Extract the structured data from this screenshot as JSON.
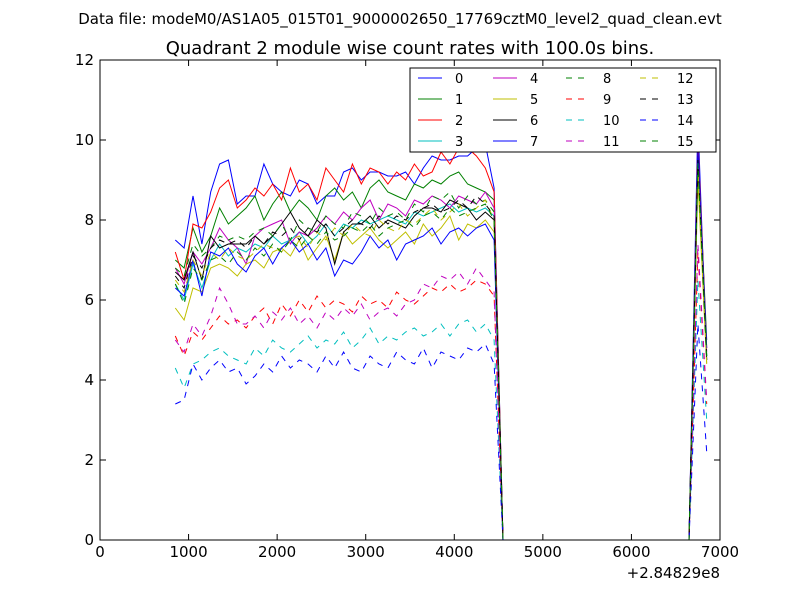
{
  "chart_data": {
    "type": "line",
    "suptitle": "Data file: modeM0/AS1A05_015T01_9000002650_17769cztM0_level2_quad_clean.evt",
    "title": "Quadrant 2 module wise count rates with 100.0s bins.",
    "xlabel": "",
    "ylabel": "",
    "x_offset_label": "+2.84829e8",
    "xlim": [
      0,
      7000
    ],
    "ylim": [
      0,
      12
    ],
    "xticks": [
      0,
      1000,
      2000,
      3000,
      4000,
      5000,
      6000,
      7000
    ],
    "yticks": [
      0,
      2,
      4,
      6,
      8,
      10,
      12
    ],
    "legend_position": "top-right",
    "x": [
      850,
      950,
      1050,
      1150,
      1250,
      1350,
      1450,
      1550,
      1650,
      1750,
      1850,
      1950,
      2050,
      2150,
      2250,
      2350,
      2450,
      2550,
      2650,
      2750,
      2850,
      2950,
      3050,
      3150,
      3250,
      3350,
      3450,
      3550,
      3650,
      3750,
      3850,
      3950,
      4050,
      4150,
      4250,
      4350,
      4450,
      4550,
      4650,
      4750,
      4850,
      4950,
      5050,
      5150,
      5250,
      5350,
      5450,
      5550,
      5650,
      5750,
      5850,
      5950,
      6050,
      6150,
      6250,
      6350,
      6450,
      6550,
      6650,
      6750,
      6850
    ],
    "series": [
      {
        "name": "0",
        "color": "#0000ff",
        "dash": "solid",
        "values": [
          7.5,
          7.3,
          8.6,
          7.4,
          8.7,
          9.4,
          9.5,
          8.4,
          8.6,
          8.6,
          9.4,
          8.9,
          8.7,
          8.6,
          9.0,
          8.9,
          8.4,
          8.6,
          8.6,
          9.2,
          9.3,
          9.0,
          9.2,
          9.2,
          9.1,
          9.1,
          9.2,
          8.9,
          9.3,
          9.6,
          9.5,
          9.5,
          9.6,
          9.6,
          9.8,
          9.9,
          8.8,
          0,
          0,
          0,
          0,
          0,
          0,
          0,
          0,
          0,
          0,
          0,
          0,
          0,
          0,
          0,
          0,
          0,
          0,
          0,
          0,
          0,
          0,
          10.5,
          4.5
        ]
      },
      {
        "name": "1",
        "color": "#008000",
        "dash": "solid",
        "values": [
          7.0,
          6.8,
          7.8,
          7.2,
          7.6,
          8.3,
          7.9,
          8.1,
          8.3,
          8.6,
          8.0,
          8.4,
          8.7,
          8.2,
          8.5,
          8.3,
          8.0,
          8.6,
          8.8,
          8.5,
          8.7,
          8.3,
          8.8,
          9.0,
          8.7,
          8.6,
          8.5,
          8.9,
          8.8,
          9.0,
          8.9,
          9.1,
          9.2,
          8.9,
          8.8,
          8.7,
          8.5,
          0,
          0,
          0,
          0,
          0,
          0,
          0,
          0,
          0,
          0,
          0,
          0,
          0,
          0,
          0,
          0,
          0,
          0,
          0,
          0,
          0,
          0,
          9.8,
          5.0
        ]
      },
      {
        "name": "2",
        "color": "#ff0000",
        "dash": "solid",
        "values": [
          7.2,
          6.5,
          7.9,
          7.8,
          8.2,
          8.8,
          9.0,
          8.3,
          8.5,
          8.8,
          8.6,
          8.9,
          8.5,
          9.3,
          8.7,
          8.9,
          8.5,
          9.3,
          9.0,
          8.7,
          9.4,
          8.9,
          9.3,
          9.2,
          8.9,
          9.2,
          9.0,
          9.4,
          9.1,
          9.2,
          9.7,
          9.4,
          9.8,
          9.8,
          9.6,
          9.3,
          8.7,
          0,
          0,
          0,
          0,
          0,
          0,
          0,
          0,
          0,
          0,
          0,
          0,
          0,
          0,
          0,
          0,
          0,
          0,
          0,
          0,
          0,
          0,
          10.0,
          4.8
        ]
      },
      {
        "name": "3",
        "color": "#00bfbf",
        "dash": "solid",
        "values": [
          6.4,
          6.0,
          6.9,
          6.3,
          7.0,
          7.4,
          7.1,
          7.3,
          7.2,
          7.4,
          7.3,
          7.6,
          7.4,
          7.5,
          7.7,
          7.4,
          7.6,
          7.9,
          7.6,
          7.9,
          7.8,
          8.0,
          7.9,
          8.0,
          8.1,
          8.0,
          7.9,
          8.2,
          8.1,
          8.2,
          8.3,
          8.4,
          8.2,
          8.3,
          8.2,
          8.3,
          8.1,
          0,
          0,
          0,
          0,
          0,
          0,
          0,
          0,
          0,
          0,
          0,
          0,
          0,
          0,
          0,
          0,
          0,
          0,
          0,
          0,
          0,
          0,
          9.2,
          4.6
        ]
      },
      {
        "name": "4",
        "color": "#bf00bf",
        "dash": "solid",
        "values": [
          6.8,
          6.4,
          7.2,
          6.9,
          7.3,
          7.8,
          7.5,
          7.3,
          6.9,
          7.6,
          7.8,
          7.9,
          8.0,
          7.4,
          7.7,
          7.6,
          7.8,
          8.1,
          7.9,
          8.2,
          8.0,
          8.3,
          8.5,
          8.0,
          8.4,
          8.3,
          8.1,
          8.5,
          8.4,
          8.6,
          8.5,
          8.3,
          8.6,
          8.5,
          8.4,
          8.7,
          8.3,
          0,
          0,
          0,
          0,
          0,
          0,
          0,
          0,
          0,
          0,
          0,
          0,
          0,
          0,
          0,
          0,
          0,
          0,
          0,
          0,
          0,
          0,
          9.4,
          4.7
        ]
      },
      {
        "name": "5",
        "color": "#bfbf00",
        "dash": "solid",
        "values": [
          5.8,
          5.5,
          6.3,
          6.2,
          6.8,
          6.9,
          6.8,
          6.6,
          6.9,
          7.0,
          6.8,
          7.2,
          7.3,
          7.1,
          7.5,
          7.0,
          7.3,
          7.6,
          7.0,
          7.7,
          7.4,
          7.6,
          7.8,
          7.5,
          7.3,
          7.5,
          7.7,
          7.4,
          7.9,
          7.6,
          7.8,
          8.1,
          7.5,
          7.9,
          7.8,
          8.0,
          7.7,
          0,
          0,
          0,
          0,
          0,
          0,
          0,
          0,
          0,
          0,
          0,
          0,
          0,
          0,
          0,
          0,
          0,
          0,
          0,
          0,
          0,
          0,
          9.0,
          4.4
        ]
      },
      {
        "name": "6",
        "color": "#000000",
        "dash": "solid",
        "values": [
          6.7,
          6.5,
          7.2,
          6.5,
          7.6,
          7.3,
          7.4,
          7.4,
          7.4,
          7.6,
          7.4,
          7.6,
          7.9,
          8.2,
          7.8,
          7.6,
          8.0,
          7.8,
          6.9,
          7.7,
          7.9,
          7.9,
          8.1,
          7.8,
          8.0,
          7.9,
          7.8,
          8.1,
          8.3,
          8.3,
          8.2,
          8.5,
          8.4,
          8.3,
          8.0,
          8.2,
          8.0,
          0,
          0,
          0,
          0,
          0,
          0,
          0,
          0,
          0,
          0,
          0,
          0,
          0,
          0,
          0,
          0,
          0,
          0,
          0,
          0,
          0,
          0,
          9.6,
          4.5
        ]
      },
      {
        "name": "7",
        "color": "#0000ff",
        "dash": "solid",
        "values": [
          6.3,
          6.1,
          7.0,
          6.1,
          7.2,
          7.1,
          7.3,
          6.9,
          6.7,
          7.1,
          7.3,
          6.9,
          7.3,
          7.5,
          7.2,
          7.4,
          7.0,
          7.3,
          6.6,
          7.0,
          6.9,
          7.2,
          7.6,
          7.3,
          7.5,
          7.0,
          7.4,
          7.5,
          7.6,
          7.8,
          7.4,
          7.7,
          7.8,
          7.6,
          7.8,
          7.9,
          7.5,
          0,
          0,
          0,
          0,
          0,
          0,
          0,
          0,
          0,
          0,
          0,
          0,
          0,
          0,
          0,
          0,
          0,
          0,
          0,
          0,
          0,
          0,
          9.8,
          4.8
        ]
      },
      {
        "name": "8",
        "color": "#008000",
        "dash": "dashed",
        "values": [
          6.8,
          6.6,
          7.4,
          7.1,
          7.3,
          7.6,
          7.5,
          7.6,
          7.5,
          7.7,
          7.8,
          7.6,
          7.9,
          7.5,
          8.0,
          7.8,
          7.7,
          8.1,
          7.9,
          7.8,
          8.2,
          8.1,
          7.9,
          8.3,
          8.1,
          8.2,
          8.0,
          8.4,
          8.2,
          8.6,
          8.5,
          8.7,
          8.3,
          8.6,
          8.4,
          8.5,
          8.2,
          0,
          0,
          0,
          0,
          0,
          0,
          0,
          0,
          0,
          0,
          0,
          0,
          0,
          0,
          0,
          0,
          0,
          0,
          0,
          0,
          0,
          0,
          9.5,
          4.6
        ]
      },
      {
        "name": "9",
        "color": "#ff0000",
        "dash": "dashed",
        "values": [
          5.1,
          4.6,
          5.2,
          5.0,
          5.3,
          5.6,
          5.4,
          5.5,
          5.3,
          5.6,
          5.8,
          5.4,
          5.9,
          5.6,
          6.0,
          5.7,
          6.1,
          5.8,
          6.0,
          5.9,
          5.7,
          6.1,
          5.9,
          6.0,
          5.8,
          6.2,
          6.0,
          5.9,
          6.1,
          6.3,
          6.2,
          6.4,
          6.2,
          6.3,
          6.5,
          6.4,
          6.1,
          0,
          0,
          0,
          0,
          0,
          0,
          0,
          0,
          0,
          0,
          0,
          0,
          0,
          0,
          0,
          0,
          0,
          0,
          0,
          0,
          0,
          0,
          7.2,
          3.4
        ]
      },
      {
        "name": "10",
        "color": "#00bfbf",
        "dash": "dashed",
        "values": [
          4.3,
          3.8,
          4.4,
          4.5,
          4.7,
          4.8,
          4.6,
          4.5,
          4.4,
          4.8,
          4.6,
          5.0,
          4.8,
          4.7,
          4.9,
          5.1,
          4.8,
          5.0,
          4.9,
          5.2,
          4.8,
          5.0,
          5.3,
          4.9,
          5.1,
          5.0,
          5.2,
          5.3,
          5.1,
          5.2,
          5.4,
          5.1,
          5.4,
          5.5,
          5.2,
          5.4,
          5.0,
          0,
          0,
          0,
          0,
          0,
          0,
          0,
          0,
          0,
          0,
          0,
          0,
          0,
          0,
          0,
          0,
          0,
          0,
          0,
          0,
          0,
          0,
          6.5,
          3.0
        ]
      },
      {
        "name": "11",
        "color": "#bf00bf",
        "dash": "dashed",
        "values": [
          5.0,
          4.7,
          5.4,
          5.1,
          5.6,
          6.3,
          5.9,
          5.4,
          5.4,
          5.6,
          5.3,
          5.7,
          5.5,
          5.8,
          5.4,
          5.6,
          5.3,
          5.7,
          5.5,
          5.8,
          5.6,
          5.9,
          5.5,
          5.7,
          5.8,
          5.6,
          5.9,
          6.0,
          6.4,
          6.3,
          6.6,
          6.5,
          6.7,
          6.4,
          6.8,
          6.5,
          6.2,
          0,
          0,
          0,
          0,
          0,
          0,
          0,
          0,
          0,
          0,
          0,
          0,
          0,
          0,
          0,
          0,
          0,
          0,
          0,
          0,
          0,
          0,
          7.4,
          3.5
        ]
      },
      {
        "name": "12",
        "color": "#bfbf00",
        "dash": "dashed",
        "values": [
          6.5,
          6.2,
          7.0,
          6.6,
          7.2,
          7.0,
          7.3,
          7.1,
          7.0,
          7.2,
          7.4,
          7.3,
          7.2,
          7.5,
          7.6,
          7.3,
          7.7,
          7.5,
          7.8,
          7.6,
          7.9,
          7.7,
          7.6,
          8.0,
          7.8,
          7.7,
          8.0,
          7.9,
          8.1,
          8.3,
          8.0,
          8.2,
          8.4,
          8.1,
          8.3,
          8.5,
          8.0,
          0,
          0,
          0,
          0,
          0,
          0,
          0,
          0,
          0,
          0,
          0,
          0,
          0,
          0,
          0,
          0,
          0,
          0,
          0,
          0,
          0,
          0,
          9.3,
          4.4
        ]
      },
      {
        "name": "13",
        "color": "#000000",
        "dash": "dashed",
        "values": [
          6.6,
          6.3,
          7.1,
          6.8,
          7.3,
          7.5,
          7.4,
          7.5,
          7.3,
          7.6,
          7.4,
          7.7,
          7.6,
          7.8,
          7.5,
          7.8,
          7.7,
          7.9,
          7.6,
          7.8,
          8.0,
          7.9,
          7.8,
          8.1,
          7.9,
          8.1,
          8.0,
          8.2,
          8.3,
          8.4,
          8.2,
          8.3,
          8.5,
          8.3,
          8.6,
          8.4,
          8.1,
          0,
          0,
          0,
          0,
          0,
          0,
          0,
          0,
          0,
          0,
          0,
          0,
          0,
          0,
          0,
          0,
          0,
          0,
          0,
          0,
          0,
          0,
          9.5,
          4.5
        ]
      },
      {
        "name": "14",
        "color": "#0000ff",
        "dash": "dashed",
        "values": [
          3.4,
          3.5,
          4.4,
          4.0,
          4.3,
          4.5,
          4.2,
          4.3,
          3.9,
          4.1,
          4.4,
          4.2,
          4.6,
          4.3,
          4.5,
          4.4,
          4.2,
          4.6,
          4.3,
          4.7,
          4.3,
          4.2,
          4.6,
          4.4,
          4.3,
          4.7,
          4.5,
          4.4,
          4.8,
          4.3,
          4.7,
          4.6,
          4.5,
          4.8,
          4.7,
          4.9,
          4.4,
          0,
          0,
          0,
          0,
          0,
          0,
          0,
          0,
          0,
          0,
          0,
          0,
          0,
          0,
          0,
          0,
          0,
          0,
          0,
          0,
          0,
          0,
          5.4,
          2.2
        ]
      },
      {
        "name": "15",
        "color": "#008000",
        "dash": "dashed",
        "values": [
          6.4,
          5.9,
          6.8,
          6.5,
          7.0,
          7.1,
          6.9,
          7.2,
          7.0,
          7.3,
          7.1,
          7.4,
          7.2,
          7.5,
          7.3,
          7.6,
          7.4,
          7.7,
          7.5,
          7.6,
          7.8,
          7.7,
          7.9,
          7.6,
          7.8,
          7.9,
          8.0,
          7.8,
          8.1,
          8.2,
          8.0,
          8.3,
          8.1,
          8.2,
          8.3,
          8.4,
          8.0,
          0,
          0,
          0,
          0,
          0,
          0,
          0,
          0,
          0,
          0,
          0,
          0,
          0,
          0,
          0,
          0,
          0,
          0,
          0,
          0,
          0,
          0,
          9.4,
          4.6
        ]
      }
    ]
  }
}
